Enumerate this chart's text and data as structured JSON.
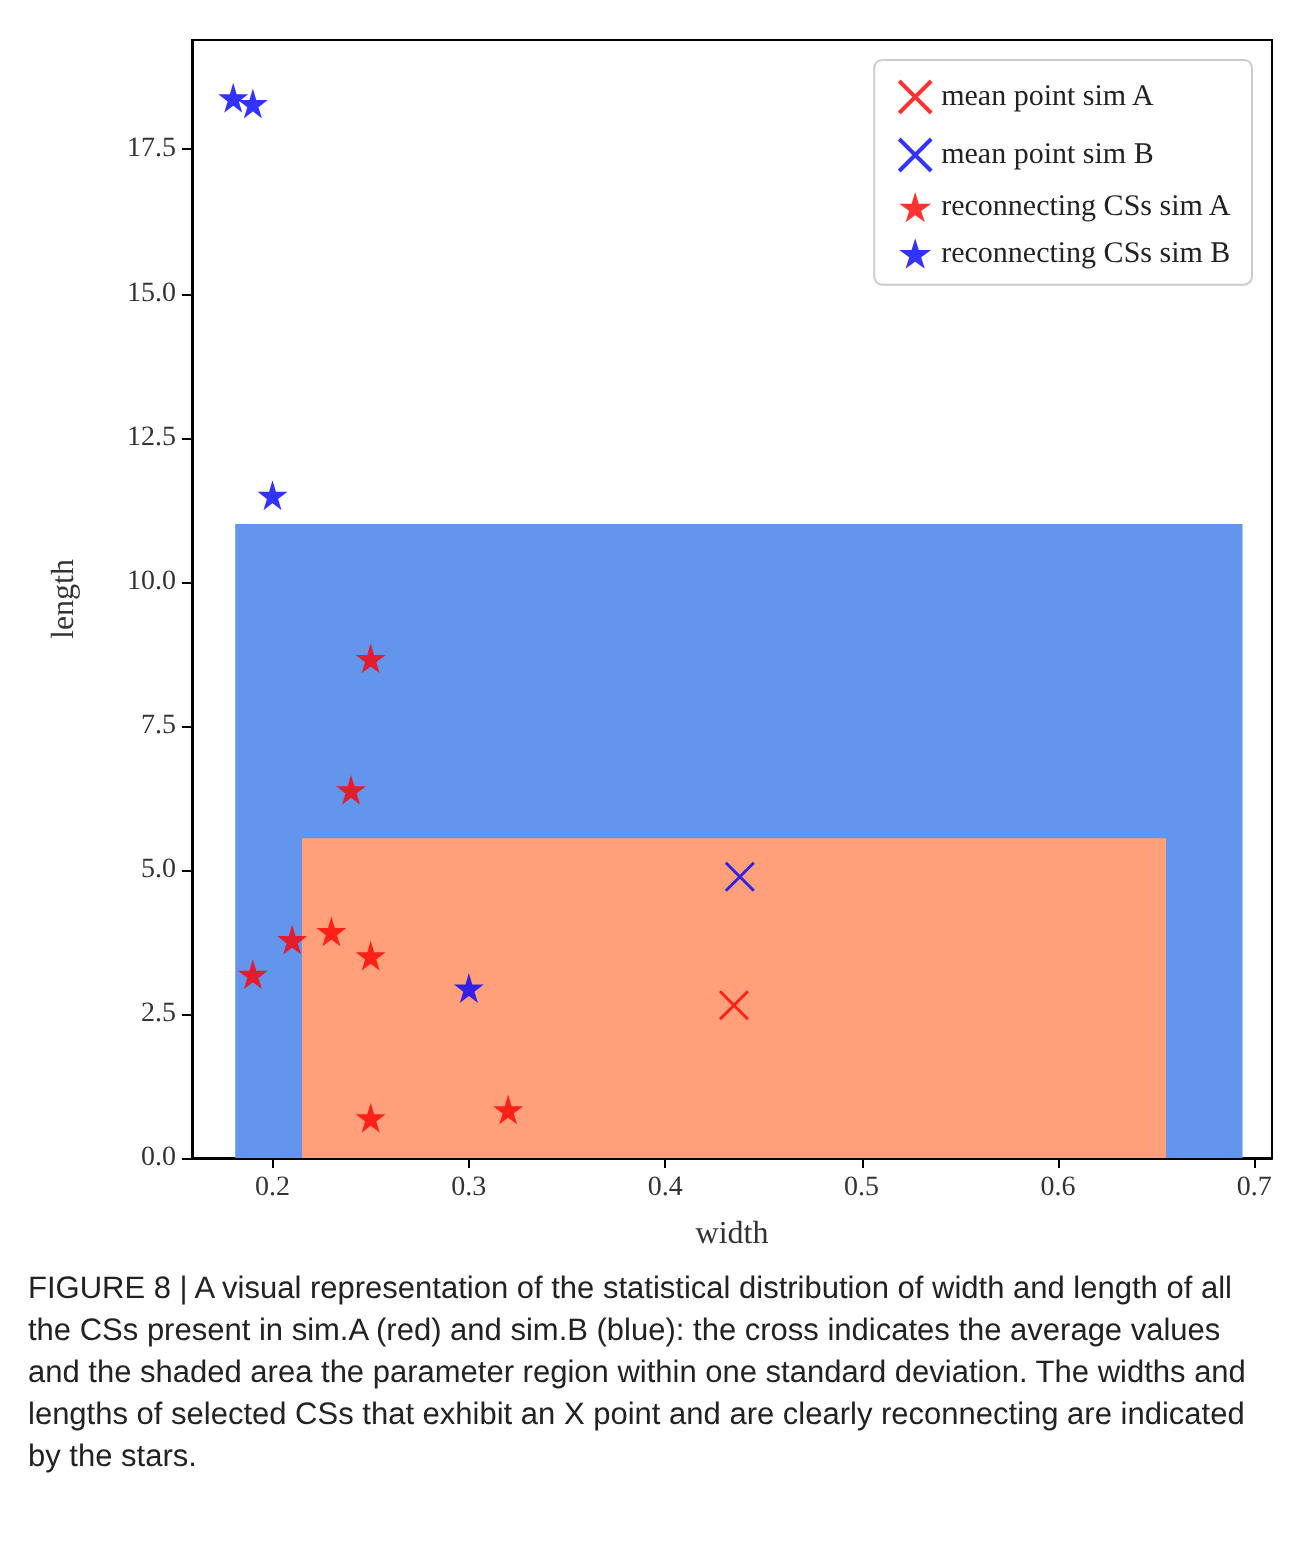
{
  "chart_data": {
    "type": "scatter",
    "xlabel": "width",
    "ylabel": "length",
    "xlim": [
      0.159,
      0.709
    ],
    "xticks": [
      0.2,
      0.3,
      0.4,
      0.5,
      0.6,
      0.7
    ],
    "ylim": [
      0,
      19.4
    ],
    "yticks": [
      {
        "value": 0,
        "label": "0.0"
      },
      {
        "value": 2.5,
        "label": "2.5"
      },
      {
        "value": 5,
        "label": "5.0"
      },
      {
        "value": 7.5,
        "label": "7.5"
      },
      {
        "value": 10,
        "label": "10.0"
      },
      {
        "value": 12.5,
        "label": "12.5"
      },
      {
        "value": 15,
        "label": "15.0"
      },
      {
        "value": 17.5,
        "label": "17.5"
      }
    ],
    "grid": false,
    "legend": "top right",
    "series": [
      {
        "type": "area",
        "color": "#6495ed",
        "x": [
          0.181,
          0.694
        ],
        "values": [
          11.0,
          11.0
        ]
      },
      {
        "type": "area",
        "color": "#ffa07a",
        "x": [
          0.215,
          0.655
        ],
        "values": [
          5.55,
          5.55
        ]
      },
      {
        "name": "mean point sim A",
        "color": "#ff0000",
        "marker": "cross",
        "x": [
          0.435
        ],
        "values": [
          2.65
        ]
      },
      {
        "name": "mean point sim B",
        "color": "#0000ff",
        "marker": "cross",
        "x": [
          0.438
        ],
        "values": [
          4.88
        ]
      },
      {
        "name": "reconnecting CSs sim A",
        "color": "#ff0000",
        "marker": "star",
        "x": [
          0.19,
          0.21,
          0.23,
          0.25,
          0.24,
          0.25,
          0.25,
          0.32
        ],
        "values": [
          3.19,
          3.79,
          3.93,
          3.51,
          6.39,
          8.67,
          0.7,
          0.84
        ]
      },
      {
        "name": "reconnecting CSs sim B",
        "color": "#0000ff",
        "marker": "star",
        "x": [
          0.18,
          0.19,
          0.2,
          0.3
        ],
        "values": [
          18.4,
          18.3,
          11.5,
          2.95
        ]
      }
    ],
    "annotations": [
      "FIGURE 8 | A visual representation of the statistical distribution of width and length of all the CSs present in sim.A (red) and sim.B (blue): the cross indicates the average values and the shaded area the parameter region within one standard deviation. The widths and lengths of selected CSs that exhibit an X point and are clearly reconnecting are indicated by the stars."
    ]
  }
}
